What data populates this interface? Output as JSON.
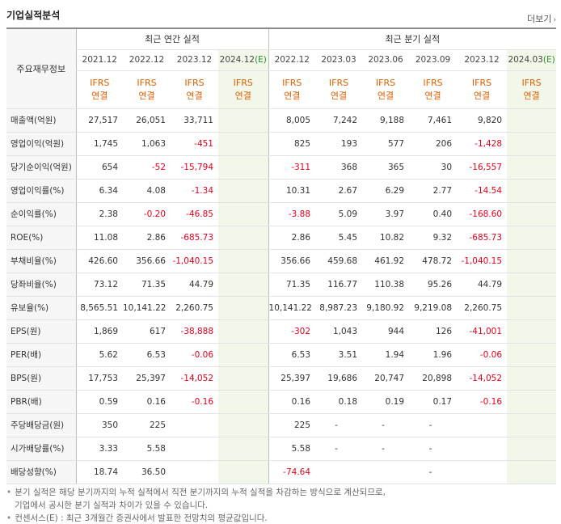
{
  "page": {
    "title": "기업실적분석",
    "more_label": "더보기"
  },
  "header": {
    "row_label": "주요재무정보",
    "annual_group": "최근 연간 실적",
    "quarter_group": "최근 분기 실적",
    "periods_annual": [
      "2021.12",
      "2022.12",
      "2023.12",
      "2024.12(E)"
    ],
    "periods_quarter": [
      "2022.12",
      "2023.03",
      "2023.06",
      "2023.09",
      "2023.12",
      "2024.03(E)"
    ],
    "basis_top": "IFRS",
    "basis_bottom": "연결"
  },
  "rows": [
    {
      "label": "매출액(억원)",
      "annual": [
        "27,517",
        "26,051",
        "33,711",
        ""
      ],
      "quarter": [
        "8,005",
        "7,242",
        "9,188",
        "7,461",
        "9,820",
        ""
      ]
    },
    {
      "label": "영업이익(억원)",
      "annual": [
        "1,745",
        "1,063",
        "-451",
        ""
      ],
      "quarter": [
        "825",
        "193",
        "577",
        "206",
        "-1,428",
        ""
      ]
    },
    {
      "label": "당기순이익(억원)",
      "annual": [
        "654",
        "-52",
        "-15,794",
        ""
      ],
      "quarter": [
        "-311",
        "368",
        "365",
        "30",
        "-16,557",
        ""
      ]
    },
    {
      "label": "영업이익률(%)",
      "annual": [
        "6.34",
        "4.08",
        "-1.34",
        ""
      ],
      "quarter": [
        "10.31",
        "2.67",
        "6.29",
        "2.77",
        "-14.54",
        ""
      ]
    },
    {
      "label": "순이익률(%)",
      "annual": [
        "2.38",
        "-0.20",
        "-46.85",
        ""
      ],
      "quarter": [
        "-3.88",
        "5.09",
        "3.97",
        "0.40",
        "-168.60",
        ""
      ]
    },
    {
      "label": "ROE(%)",
      "annual": [
        "11.08",
        "2.86",
        "-685.73",
        ""
      ],
      "quarter": [
        "2.86",
        "5.45",
        "10.82",
        "9.32",
        "-685.73",
        ""
      ]
    },
    {
      "label": "부채비율(%)",
      "annual": [
        "426.60",
        "356.66",
        "-1,040.15",
        ""
      ],
      "quarter": [
        "356.66",
        "459.68",
        "461.92",
        "478.72",
        "-1,040.15",
        ""
      ]
    },
    {
      "label": "당좌비율(%)",
      "annual": [
        "73.12",
        "71.35",
        "44.79",
        ""
      ],
      "quarter": [
        "71.35",
        "116.77",
        "110.38",
        "95.26",
        "44.79",
        ""
      ]
    },
    {
      "label": "유보율(%)",
      "annual": [
        "8,565.51",
        "10,141.22",
        "2,260.75",
        ""
      ],
      "quarter": [
        "10,141.22",
        "8,987.23",
        "9,180.92",
        "9,219.08",
        "2,260.75",
        ""
      ]
    },
    {
      "label": "EPS(원)",
      "annual": [
        "1,869",
        "617",
        "-38,888",
        ""
      ],
      "quarter": [
        "-302",
        "1,043",
        "944",
        "126",
        "-41,001",
        ""
      ]
    },
    {
      "label": "PER(배)",
      "annual": [
        "5.62",
        "6.53",
        "-0.06",
        ""
      ],
      "quarter": [
        "6.53",
        "3.51",
        "1.94",
        "1.96",
        "-0.06",
        ""
      ]
    },
    {
      "label": "BPS(원)",
      "annual": [
        "17,753",
        "25,397",
        "-14,052",
        ""
      ],
      "quarter": [
        "25,397",
        "19,686",
        "20,747",
        "20,898",
        "-14,052",
        ""
      ]
    },
    {
      "label": "PBR(배)",
      "annual": [
        "0.59",
        "0.16",
        "-0.16",
        ""
      ],
      "quarter": [
        "0.16",
        "0.18",
        "0.19",
        "0.17",
        "-0.16",
        ""
      ]
    },
    {
      "label": "주당배당금(원)",
      "annual": [
        "350",
        "225",
        "",
        ""
      ],
      "quarter": [
        "225",
        "-",
        "-",
        "-",
        "",
        ""
      ]
    },
    {
      "label": "시가배당률(%)",
      "annual": [
        "3.33",
        "5.58",
        "",
        ""
      ],
      "quarter": [
        "5.58",
        "-",
        "-",
        "-",
        "",
        ""
      ]
    },
    {
      "label": "배당성향(%)",
      "annual": [
        "18.74",
        "36.50",
        "",
        ""
      ],
      "quarter": [
        "-74.64",
        "",
        "",
        "-",
        "",
        ""
      ]
    }
  ],
  "notes": {
    "line1": "분기 실적은 해당 분기까지의 누적 실적에서 직전 분기까지의 누적 실적을 차감하는 방식으로 계산되므로,",
    "line2": "기업에서 공시한 분기 실적과 차이가 있을 수 있습니다.",
    "line3": "컨센서스(E) : 최근 3개월간 증권사에서 발표한 전망치의 평균값입니다."
  },
  "colors": {
    "negative": "#e4001b",
    "basis": "#e06000",
    "estimate_bg": "#f1f8ea"
  }
}
